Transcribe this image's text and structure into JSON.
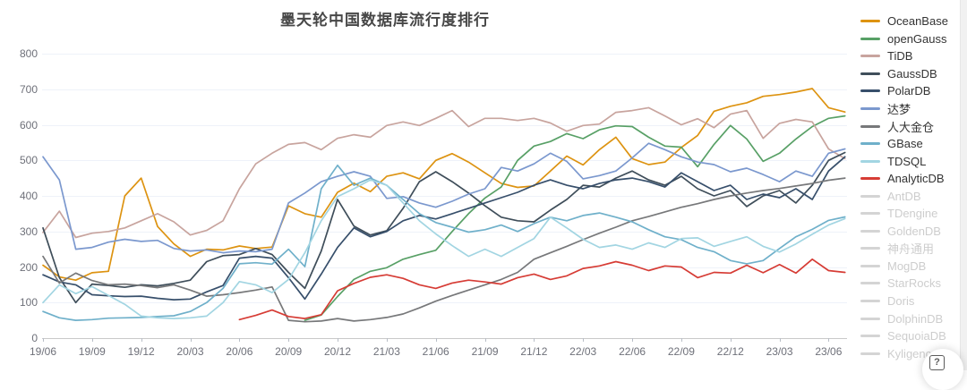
{
  "title": "墨天轮中国数据库流行度排行",
  "help_button": {
    "glyph": "?"
  },
  "colors": {
    "background": "#ffffff",
    "gridline": "#eef2f9",
    "axis_baseline": "#c9c9c9",
    "tick_text": "#6e7079",
    "disabled_legend": "#d4d4d4"
  },
  "legend": {
    "items": [
      {
        "label": "OceanBase",
        "color": "#dd9311",
        "enabled": true
      },
      {
        "label": "openGauss",
        "color": "#58a066",
        "enabled": true
      },
      {
        "label": "TiDB",
        "color": "#c8a49e",
        "enabled": true
      },
      {
        "label": "GaussDB",
        "color": "#3f4e5a",
        "enabled": true
      },
      {
        "label": "PolarDB",
        "color": "#374f6b",
        "enabled": true
      },
      {
        "label": "达梦",
        "color": "#7b98ce",
        "enabled": true
      },
      {
        "label": "人大金仓",
        "color": "#77787a",
        "enabled": true
      },
      {
        "label": "GBase",
        "color": "#6fb0ca",
        "enabled": true
      },
      {
        "label": "TDSQL",
        "color": "#a2d5e2",
        "enabled": true
      },
      {
        "label": "AnalyticDB",
        "color": "#d63c35",
        "enabled": true
      },
      {
        "label": "AntDB",
        "color": "#d4d4d4",
        "enabled": false
      },
      {
        "label": "TDengine",
        "color": "#d4d4d4",
        "enabled": false
      },
      {
        "label": "GoldenDB",
        "color": "#d4d4d4",
        "enabled": false
      },
      {
        "label": "神舟通用",
        "color": "#d4d4d4",
        "enabled": false
      },
      {
        "label": "MogDB",
        "color": "#d4d4d4",
        "enabled": false
      },
      {
        "label": "StarRocks",
        "color": "#d4d4d4",
        "enabled": false
      },
      {
        "label": "Doris",
        "color": "#d4d4d4",
        "enabled": false
      },
      {
        "label": "DolphinDB",
        "color": "#d4d4d4",
        "enabled": false
      },
      {
        "label": "SequoiaDB",
        "color": "#d4d4d4",
        "enabled": false
      },
      {
        "label": "Kyligence",
        "color": "#d4d4d4",
        "enabled": false
      }
    ]
  },
  "chart_data": {
    "type": "line",
    "title": "墨天轮中国数据库流行度排行",
    "grid": true,
    "legend_position": "right",
    "ylim": [
      0,
      800
    ],
    "y_ticks": [
      800,
      700,
      600,
      500,
      400,
      300,
      200,
      100,
      0
    ],
    "x_tick_labels": [
      "19/06",
      "19/09",
      "19/12",
      "20/03",
      "20/06",
      "20/09",
      "20/12",
      "21/03",
      "21/06",
      "21/09",
      "21/12",
      "22/03",
      "22/06",
      "22/09",
      "22/12",
      "23/03",
      "23/06"
    ],
    "months_per_tick": 3,
    "points_per_series": 50,
    "series": [
      {
        "name": "OceanBase",
        "color": "#dd9311",
        "values": [
          205,
          172,
          163,
          184,
          188,
          400,
          450,
          314,
          265,
          230,
          250,
          248,
          259,
          252,
          256,
          372,
          350,
          340,
          410,
          436,
          412,
          455,
          465,
          448,
          500,
          519,
          495,
          465,
          435,
          424,
          428,
          470,
          512,
          487,
          530,
          565,
          505,
          488,
          495,
          536,
          570,
          638,
          652,
          662,
          680,
          685,
          692,
          702,
          648,
          636
        ]
      },
      {
        "name": "openGauss",
        "color": "#58a066",
        "values": [
          null,
          null,
          null,
          null,
          null,
          null,
          null,
          null,
          null,
          null,
          null,
          null,
          null,
          null,
          null,
          null,
          50,
          65,
          117,
          165,
          188,
          198,
          222,
          235,
          247,
          300,
          350,
          394,
          425,
          500,
          540,
          553,
          575,
          561,
          586,
          597,
          595,
          565,
          540,
          537,
          482,
          545,
          598,
          560,
          497,
          520,
          560,
          595,
          618,
          625
        ]
      },
      {
        "name": "TiDB",
        "color": "#c8a49e",
        "values": [
          297,
          357,
          283,
          295,
          300,
          310,
          330,
          350,
          327,
          290,
          303,
          330,
          420,
          490,
          520,
          545,
          550,
          530,
          562,
          572,
          565,
          598,
          608,
          598,
          618,
          640,
          595,
          618,
          618,
          612,
          618,
          605,
          582,
          598,
          602,
          635,
          640,
          648,
          625,
          600,
          617,
          592,
          630,
          640,
          562,
          604,
          615,
          608,
          532,
          505
        ]
      },
      {
        "name": "GaussDB",
        "color": "#3f4e5a",
        "values": [
          310,
          170,
          100,
          152,
          148,
          143,
          150,
          147,
          154,
          163,
          215,
          232,
          235,
          252,
          235,
          185,
          140,
          245,
          390,
          315,
          290,
          302,
          365,
          440,
          468,
          440,
          408,
          372,
          340,
          330,
          327,
          360,
          390,
          430,
          425,
          450,
          470,
          445,
          430,
          455,
          420,
          400,
          415,
          370,
          400,
          415,
          380,
          430,
          500,
          522
        ]
      },
      {
        "name": "PolarDB",
        "color": "#374f6b",
        "values": [
          178,
          158,
          150,
          122,
          119,
          117,
          118,
          112,
          108,
          110,
          130,
          148,
          225,
          230,
          225,
          170,
          110,
          180,
          255,
          310,
          285,
          300,
          330,
          345,
          335,
          350,
          365,
          380,
          395,
          410,
          430,
          445,
          430,
          420,
          435,
          445,
          450,
          440,
          425,
          465,
          440,
          415,
          430,
          390,
          405,
          395,
          420,
          390,
          470,
          510
        ]
      },
      {
        "name": "达梦",
        "color": "#7b98ce",
        "values": [
          510,
          445,
          250,
          255,
          270,
          278,
          272,
          275,
          252,
          245,
          248,
          240,
          245,
          243,
          250,
          380,
          408,
          440,
          455,
          468,
          455,
          393,
          398,
          380,
          368,
          385,
          405,
          420,
          480,
          470,
          490,
          520,
          497,
          448,
          457,
          470,
          507,
          548,
          530,
          510,
          495,
          488,
          468,
          478,
          460,
          440,
          470,
          455,
          520,
          532
        ]
      },
      {
        "name": "人大金仓",
        "color": "#77787a",
        "values": [
          230,
          155,
          183,
          162,
          150,
          152,
          148,
          142,
          150,
          135,
          118,
          122,
          128,
          135,
          144,
          50,
          46,
          48,
          55,
          48,
          52,
          58,
          68,
          85,
          104,
          120,
          135,
          150,
          165,
          185,
          222,
          240,
          258,
          277,
          295,
          312,
          330,
          342,
          355,
          368,
          378,
          390,
          400,
          408,
          415,
          421,
          428,
          435,
          444,
          450
        ]
      },
      {
        "name": "GBase",
        "color": "#6fb0ca",
        "values": [
          75,
          57,
          50,
          52,
          56,
          57,
          58,
          61,
          63,
          75,
          100,
          140,
          209,
          212,
          208,
          250,
          201,
          420,
          486,
          430,
          450,
          430,
          390,
          350,
          325,
          312,
          298,
          305,
          318,
          300,
          322,
          340,
          330,
          345,
          352,
          340,
          327,
          305,
          285,
          277,
          255,
          243,
          218,
          209,
          218,
          252,
          285,
          306,
          331,
          341
        ]
      },
      {
        "name": "TDSQL",
        "color": "#a2d5e2",
        "values": [
          100,
          150,
          125,
          145,
          120,
          95,
          62,
          57,
          55,
          57,
          62,
          100,
          159,
          150,
          128,
          165,
          240,
          330,
          398,
          420,
          445,
          430,
          380,
          330,
          293,
          260,
          230,
          250,
          230,
          255,
          280,
          340,
          310,
          278,
          255,
          262,
          250,
          268,
          255,
          280,
          282,
          258,
          272,
          285,
          258,
          242,
          265,
          292,
          318,
          336
        ]
      },
      {
        "name": "AnalyticDB",
        "color": "#d63c35",
        "values": [
          null,
          null,
          null,
          null,
          null,
          null,
          null,
          null,
          null,
          null,
          null,
          null,
          52,
          64,
          79,
          61,
          55,
          66,
          133,
          154,
          171,
          178,
          168,
          150,
          140,
          155,
          163,
          158,
          152,
          170,
          180,
          165,
          175,
          196,
          203,
          215,
          205,
          190,
          203,
          200,
          170,
          185,
          183,
          205,
          184,
          207,
          183,
          222,
          190,
          185
        ]
      }
    ]
  }
}
